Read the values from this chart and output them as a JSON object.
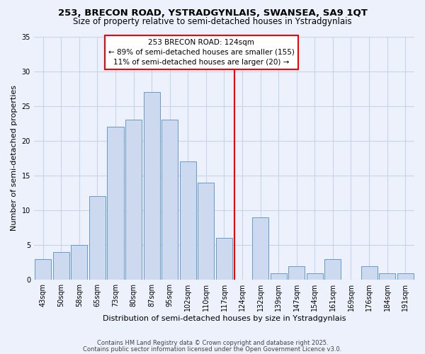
{
  "title_line1": "253, BRECON ROAD, YSTRADGYNLAIS, SWANSEA, SA9 1QT",
  "title_line2": "Size of property relative to semi-detached houses in Ystradgynlais",
  "xlabel": "Distribution of semi-detached houses by size in Ystradgynlais",
  "ylabel": "Number of semi-detached properties",
  "bar_labels": [
    "43sqm",
    "50sqm",
    "58sqm",
    "65sqm",
    "73sqm",
    "80sqm",
    "87sqm",
    "95sqm",
    "102sqm",
    "110sqm",
    "117sqm",
    "124sqm",
    "132sqm",
    "139sqm",
    "147sqm",
    "154sqm",
    "161sqm",
    "169sqm",
    "176sqm",
    "184sqm",
    "191sqm"
  ],
  "bar_values": [
    3,
    4,
    5,
    12,
    22,
    23,
    27,
    23,
    17,
    14,
    6,
    0,
    9,
    1,
    2,
    1,
    3,
    0,
    2,
    1,
    1
  ],
  "bar_color": "#ccd9ee",
  "bar_edge_color": "#6699cc",
  "red_line_index": 11,
  "annotation_line1": "253 BRECON ROAD: 124sqm",
  "annotation_line2": "← 89% of semi-detached houses are smaller (155)",
  "annotation_line3": "11% of semi-detached houses are larger (20) →",
  "ylim": [
    0,
    35
  ],
  "yticks": [
    0,
    5,
    10,
    15,
    20,
    25,
    30,
    35
  ],
  "footnote1": "Contains HM Land Registry data © Crown copyright and database right 2025.",
  "footnote2": "Contains public sector information licensed under the Open Government Licence v3.0.",
  "bg_color": "#edf1fb",
  "grid_color": "#c8d4e8",
  "title_fontsize": 9.5,
  "subtitle_fontsize": 8.5,
  "axis_label_fontsize": 8,
  "tick_fontsize": 7,
  "annotation_fontsize": 7.5,
  "footnote_fontsize": 6
}
